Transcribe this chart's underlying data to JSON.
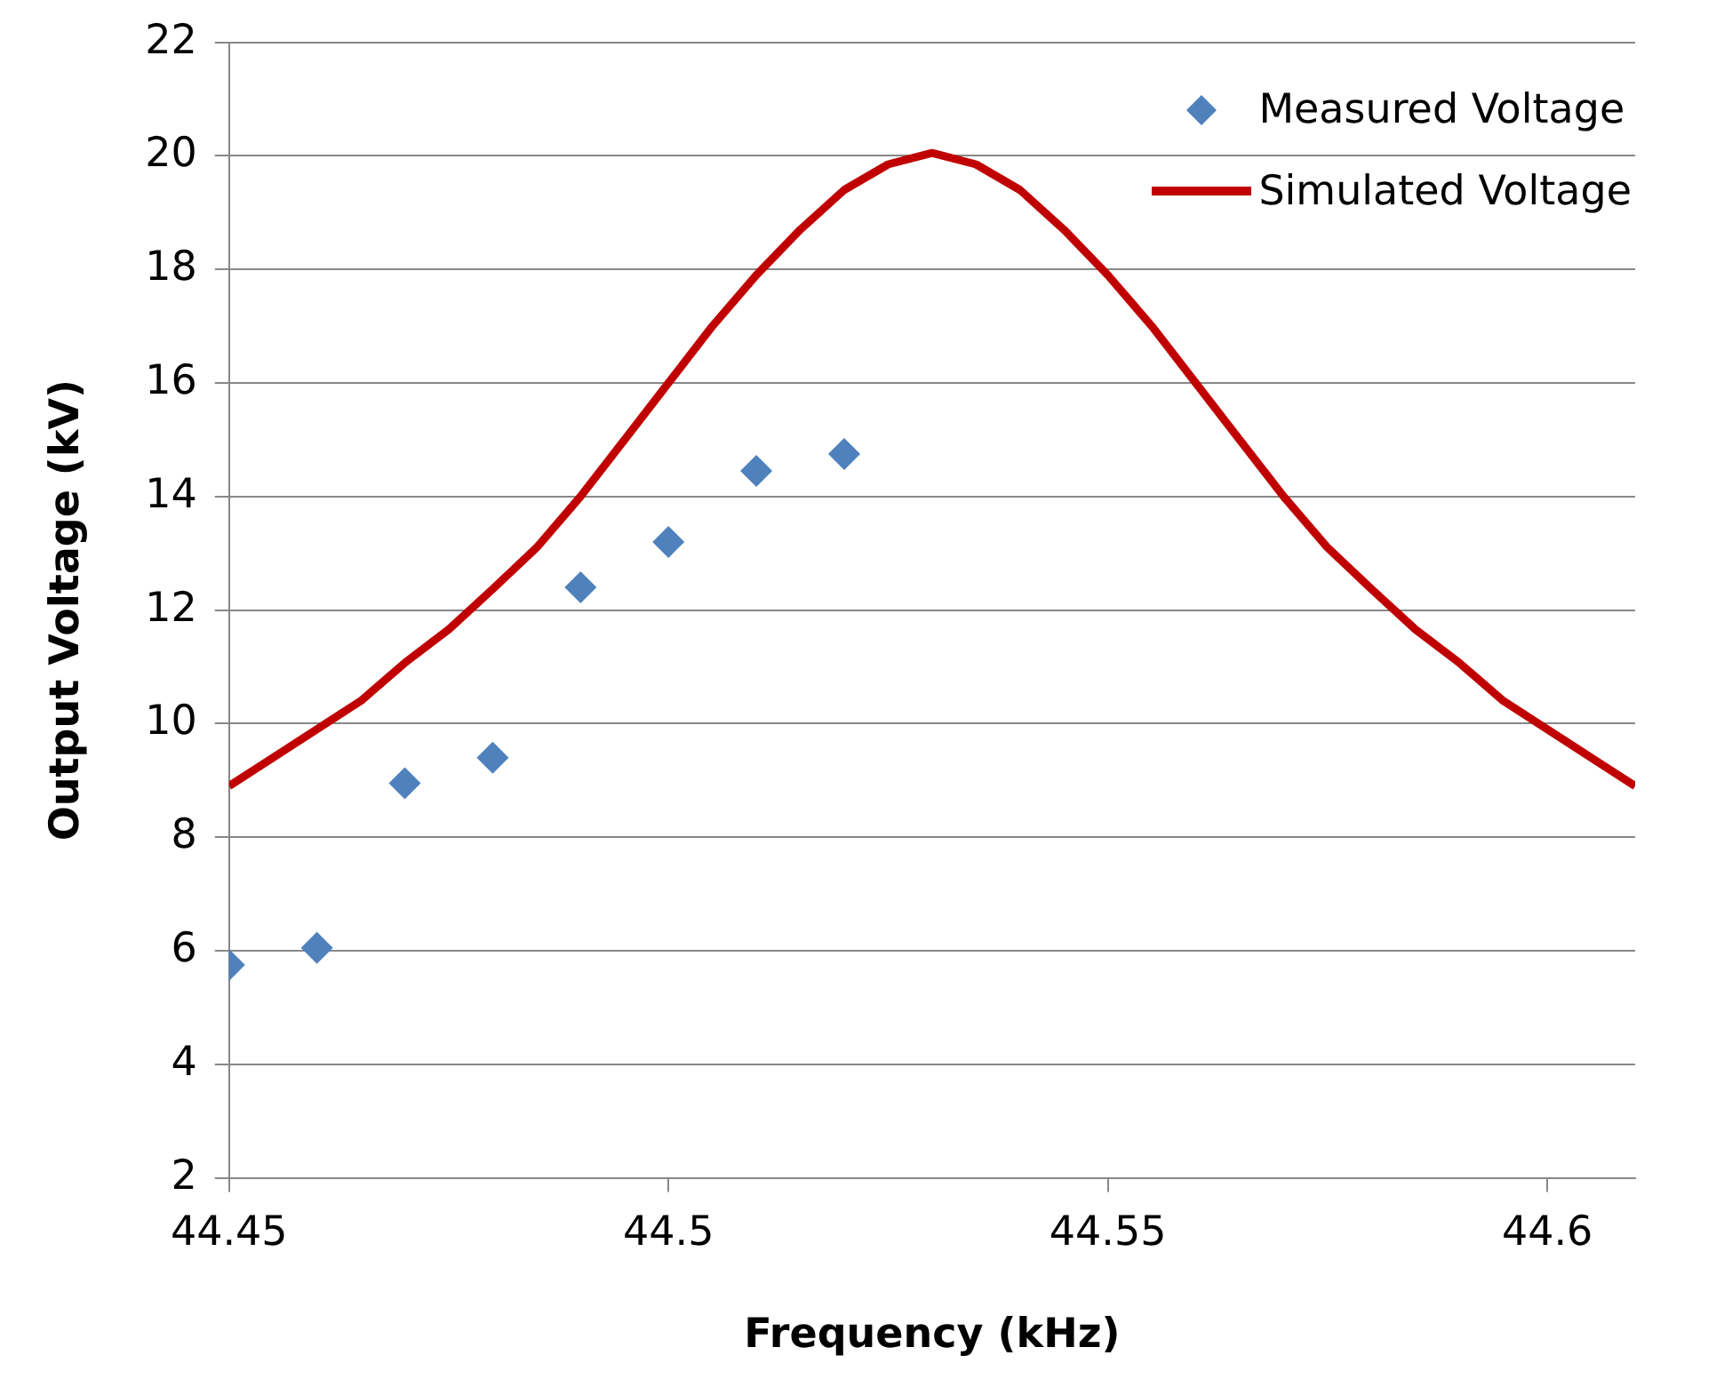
{
  "chart_data": {
    "type": "scatter",
    "xlabel": "Frequency (kHz)",
    "ylabel": "Output Voltage (kV)",
    "xlim": [
      44.45,
      44.61
    ],
    "xticks": [
      44.45,
      44.5,
      44.55,
      44.6
    ],
    "ylim": [
      2,
      22
    ],
    "yticks": [
      2,
      4,
      6,
      8,
      10,
      12,
      14,
      16,
      18,
      20,
      22
    ],
    "grid": "y",
    "legend": "top right",
    "series": [
      {
        "name": "Measured Voltage",
        "type": "scatter",
        "marker": "diamond",
        "color": "#4f81bd",
        "x": [
          44.45,
          44.46,
          44.47,
          44.48,
          44.49,
          44.5,
          44.51,
          44.52
        ],
        "values": [
          5.75,
          6.05,
          8.95,
          9.4,
          12.4,
          13.2,
          14.45,
          14.75
        ]
      },
      {
        "name": "Simulated Voltage",
        "type": "line",
        "marker": "none",
        "line_style": "solid",
        "color": "#c00000",
        "x": [
          44.45,
          44.455,
          44.46,
          44.465,
          44.47,
          44.475,
          44.48,
          44.485,
          44.49,
          44.495,
          44.5,
          44.505,
          44.51,
          44.515,
          44.52,
          44.525,
          44.53,
          44.535,
          44.54,
          44.545,
          44.55,
          44.555,
          44.56,
          44.565,
          44.57,
          44.575,
          44.58,
          44.585,
          44.59,
          44.595,
          44.6,
          44.605,
          44.61
        ],
        "values": [
          8.9,
          9.4,
          9.9,
          10.4,
          11.07,
          11.66,
          12.37,
          13.1,
          14,
          15,
          16,
          17,
          17.9,
          18.7,
          19.4,
          19.85,
          20.05,
          19.85,
          19.4,
          18.7,
          17.9,
          17,
          16,
          15,
          14,
          13.1,
          12.37,
          11.66,
          11.07,
          10.4,
          9.9,
          9.4,
          8.9
        ]
      }
    ]
  }
}
